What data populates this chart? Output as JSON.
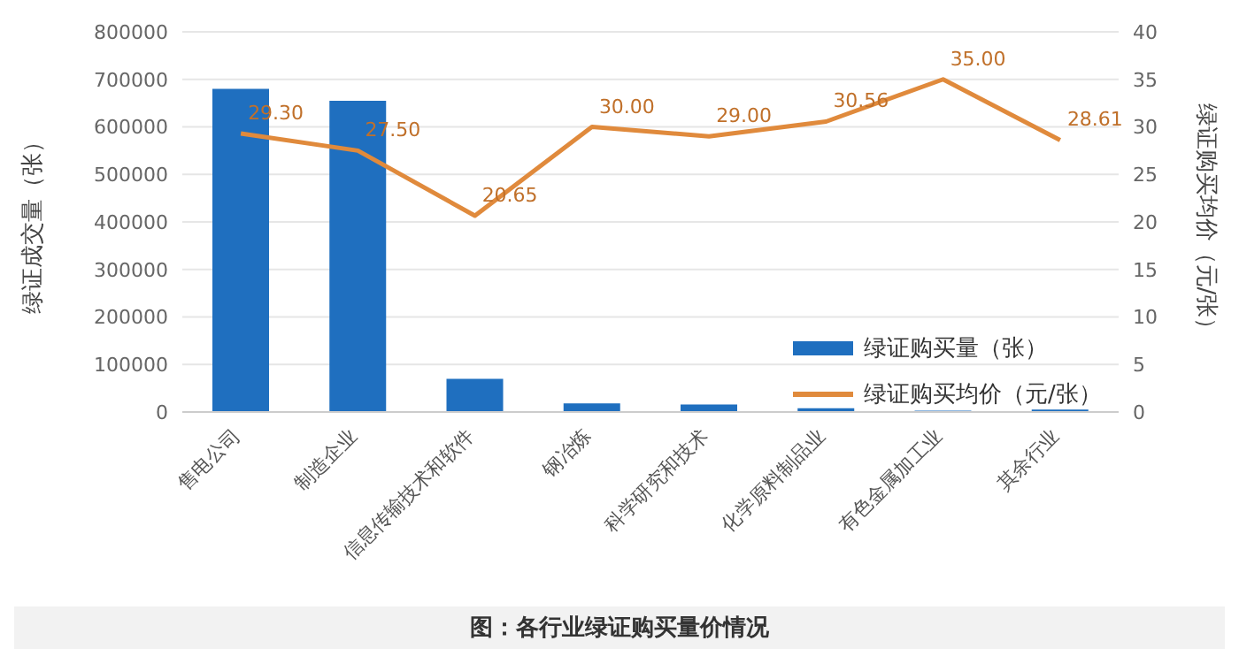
{
  "chart_data": {
    "type": "bar",
    "categories": [
      "售电公司",
      "制造企业",
      "信息传输技术和软件",
      "钢冶炼",
      "科学研究和技术",
      "化学原料制品业",
      "有色金属加工业",
      "其余行业"
    ],
    "series": [
      {
        "name": "绿证购买量（张）",
        "color": "#1f6fbf",
        "values": [
          680000,
          655000,
          70000,
          18000,
          16000,
          8000,
          3000,
          5000
        ]
      },
      {
        "name": "绿证购买均价（元/张）",
        "type": "line",
        "axis": "y2",
        "color": "#e08a3c",
        "values": [
          29.3,
          27.5,
          20.65,
          30.0,
          29.0,
          30.56,
          35.0,
          28.61
        ],
        "value_labels": [
          "29.30",
          "27.50",
          "20.65",
          "30.00",
          "29.00",
          "30.56",
          "35.00",
          "28.61"
        ]
      }
    ],
    "ylabel": "绿证成交量（张）",
    "y2label": "绿证购买均价（元/张）",
    "ylim": [
      0,
      800000
    ],
    "yticks": [
      0,
      100000,
      200000,
      300000,
      400000,
      500000,
      600000,
      700000,
      800000
    ],
    "y2lim": [
      0,
      40
    ],
    "y2ticks": [
      0,
      5,
      10,
      15,
      20,
      25,
      30,
      35,
      40
    ],
    "grid": "y",
    "legend": "right",
    "marker": "none",
    "line_style": "solid",
    "annotations": [
      "图：各行业绿证购买量价情况"
    ]
  }
}
